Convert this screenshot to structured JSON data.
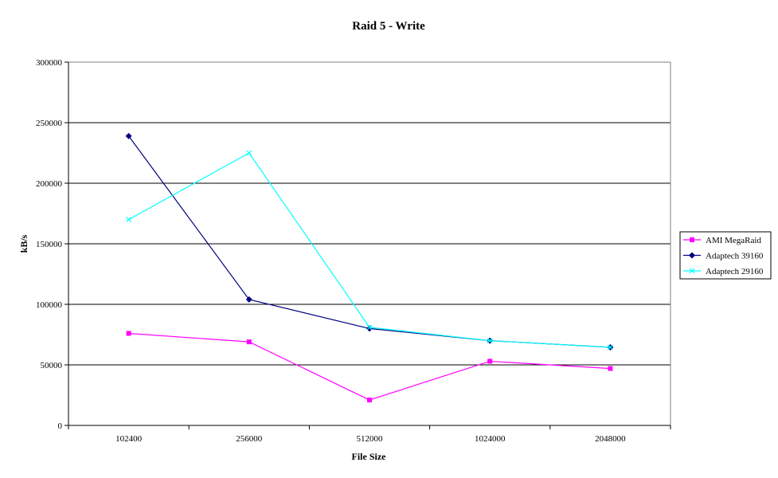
{
  "chart_data": {
    "type": "line",
    "title": "Raid 5 - Write",
    "xlabel": "File Size",
    "ylabel": "kB/s",
    "categories": [
      "102400",
      "256000",
      "512000",
      "1024000",
      "2048000"
    ],
    "ylim": [
      0,
      300000
    ],
    "yticks": [
      "0",
      "50000",
      "100000",
      "150000",
      "200000",
      "250000",
      "300000"
    ],
    "grid": "horizontal",
    "legend_position": "right",
    "series": [
      {
        "name": "AMI MegaRaid",
        "color": "#ff00ff",
        "marker": "square",
        "values": [
          76000,
          69000,
          21000,
          53000,
          47000
        ]
      },
      {
        "name": "Adaptech 39160",
        "color": "#000080",
        "marker": "diamond",
        "values": [
          239000,
          104000,
          80000,
          70000,
          64500
        ]
      },
      {
        "name": "Adaptech 29160",
        "color": "#00ffff",
        "marker": "x",
        "values": [
          170000,
          225000,
          81000,
          70000,
          64500
        ]
      }
    ]
  }
}
